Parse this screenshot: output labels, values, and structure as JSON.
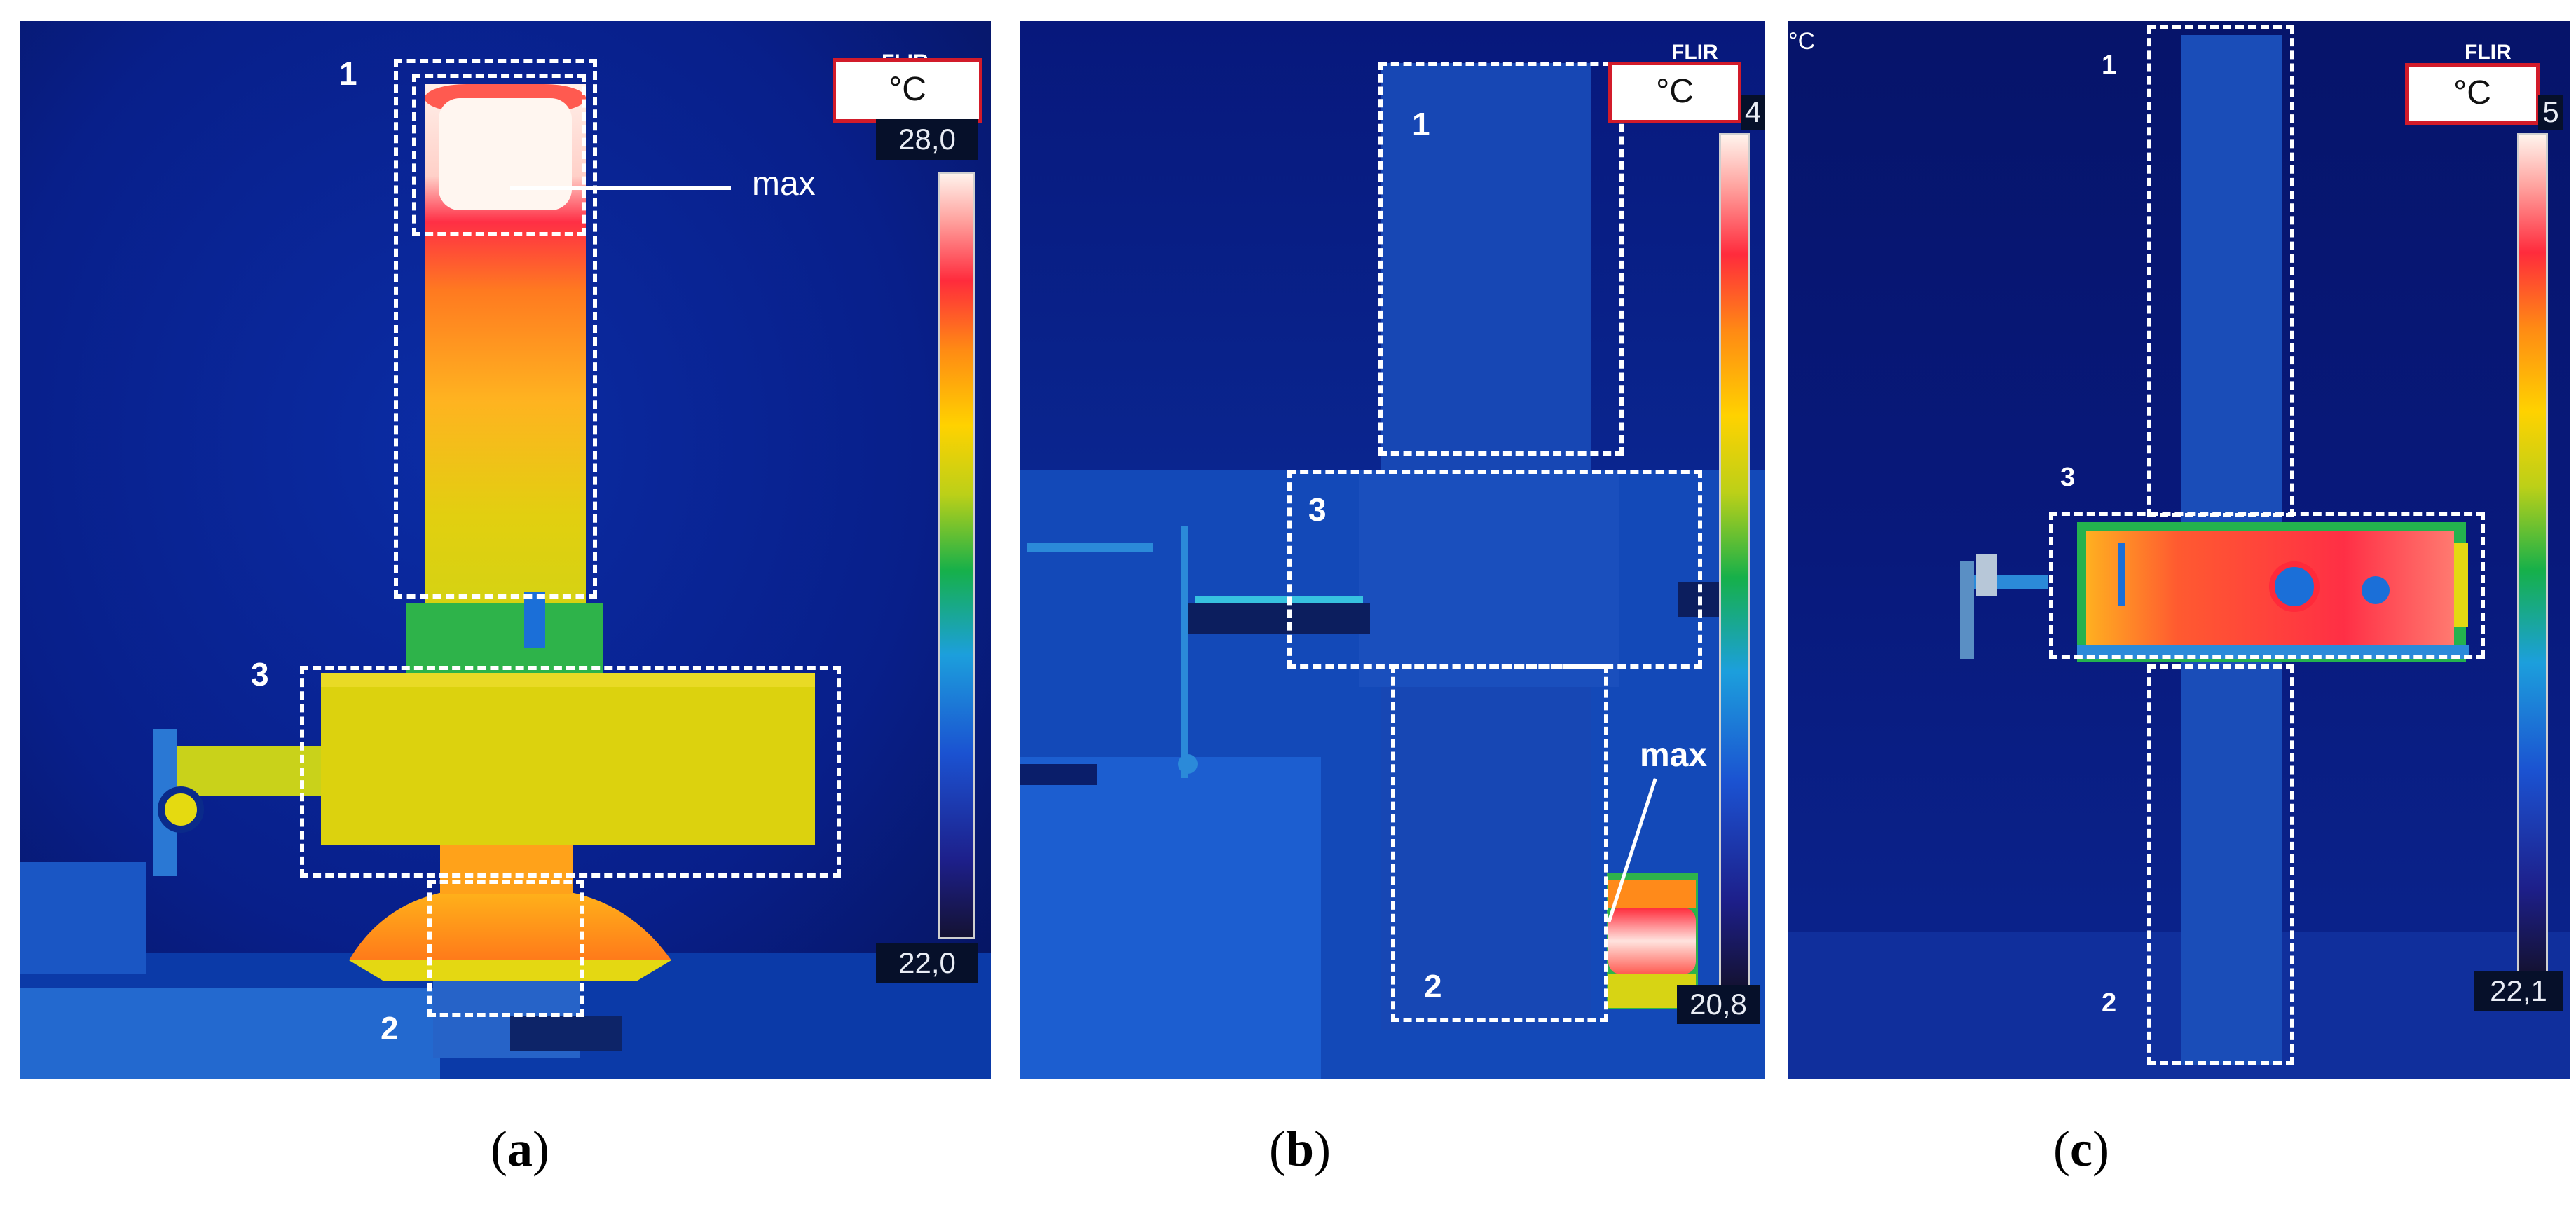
{
  "panels": {
    "a": {
      "caption_letter": "a",
      "unit": "°C",
      "scale_max": "28,0",
      "scale_min": "22,0",
      "zones": [
        "1",
        "2",
        "3"
      ],
      "max_label": "max",
      "brand": "FLIR"
    },
    "b": {
      "caption_letter": "b",
      "unit": "°C",
      "scale_max_partial": "4",
      "scale_min": "20,8",
      "zones": [
        "1",
        "2",
        "3"
      ],
      "max_label": "max",
      "brand": "FLIR"
    },
    "c": {
      "caption_letter": "c",
      "unit": "°C",
      "corner_unit": "°C",
      "scale_max_partial": "5",
      "scale_min": "22,1",
      "zones": [
        "1",
        "2",
        "3"
      ],
      "brand": "FLIR"
    }
  },
  "colors": {
    "background_dark": "#06135a",
    "hot_white": "#fff0ea",
    "hot_red": "#ff2b3c",
    "orange": "#ff9020",
    "yellow": "#e4d20a",
    "green": "#2eb34a",
    "blue": "#1b6fd8",
    "unit_border": "#d21b2a"
  }
}
